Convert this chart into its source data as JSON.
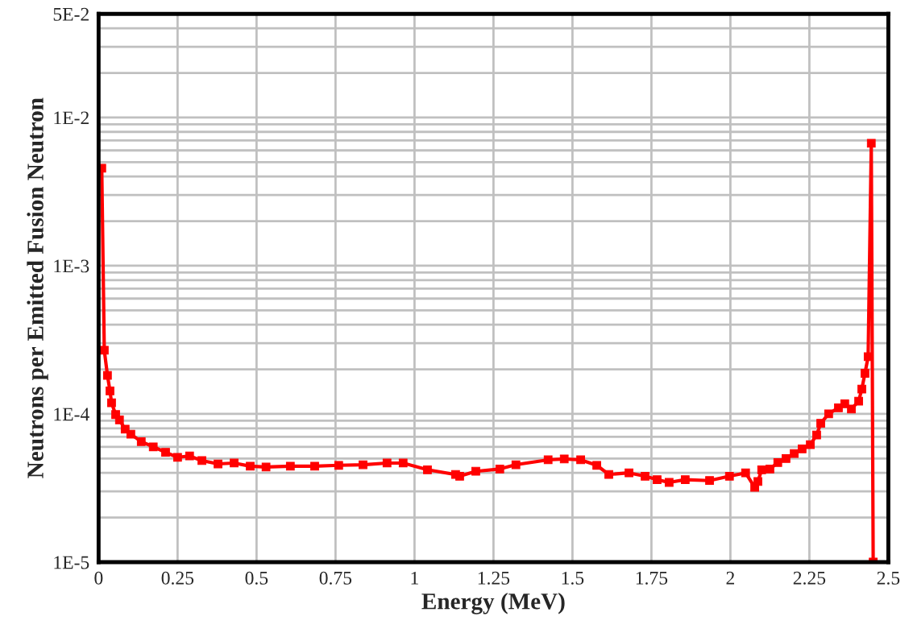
{
  "chart_data": {
    "type": "line",
    "xlabel": "Energy (MeV)",
    "ylabel": "Neutrons per Emitted Fusion Neutron",
    "log": "y",
    "grid": true,
    "marker": "square",
    "line_style": "solid",
    "xlim": [
      0,
      2.5
    ],
    "xticks": [
      0,
      0.25,
      0.5,
      0.75,
      1,
      1.25,
      1.5,
      1.75,
      2,
      2.25,
      2.5
    ],
    "ylim": [
      1e-05,
      0.05
    ],
    "yticks": [
      {
        "value": 1e-05,
        "label": "1E-5"
      },
      {
        "value": 2e-05,
        "label": null
      },
      {
        "value": 3e-05,
        "label": null
      },
      {
        "value": 4e-05,
        "label": null
      },
      {
        "value": 5e-05,
        "label": null
      },
      {
        "value": 6e-05,
        "label": null
      },
      {
        "value": 7e-05,
        "label": null
      },
      {
        "value": 8e-05,
        "label": null
      },
      {
        "value": 9e-05,
        "label": null
      },
      {
        "value": 0.0001,
        "label": "1E-4"
      },
      {
        "value": 0.0002,
        "label": null
      },
      {
        "value": 0.0003,
        "label": null
      },
      {
        "value": 0.0004,
        "label": null
      },
      {
        "value": 0.0005,
        "label": null
      },
      {
        "value": 0.0006,
        "label": null
      },
      {
        "value": 0.0007,
        "label": null
      },
      {
        "value": 0.0008,
        "label": null
      },
      {
        "value": 0.0009,
        "label": null
      },
      {
        "value": 0.001,
        "label": "1E-3"
      },
      {
        "value": 0.002,
        "label": null
      },
      {
        "value": 0.003,
        "label": null
      },
      {
        "value": 0.004,
        "label": null
      },
      {
        "value": 0.005,
        "label": null
      },
      {
        "value": 0.006,
        "label": null
      },
      {
        "value": 0.007,
        "label": null
      },
      {
        "value": 0.008,
        "label": null
      },
      {
        "value": 0.009,
        "label": null
      },
      {
        "value": 0.01,
        "label": "1E-2"
      },
      {
        "value": 0.02,
        "label": null
      },
      {
        "value": 0.03,
        "label": null
      },
      {
        "value": 0.04,
        "label": null
      },
      {
        "value": 0.05,
        "label": "5E-2"
      }
    ],
    "x": [
      0.01,
      0.018,
      0.028,
      0.036,
      0.041,
      0.054,
      0.066,
      0.084,
      0.102,
      0.135,
      0.173,
      0.212,
      0.25,
      0.288,
      0.327,
      0.378,
      0.429,
      0.48,
      0.53,
      0.607,
      0.684,
      0.76,
      0.837,
      0.913,
      0.964,
      1.041,
      1.13,
      1.143,
      1.194,
      1.27,
      1.321,
      1.423,
      1.474,
      1.526,
      1.577,
      1.615,
      1.679,
      1.73,
      1.768,
      1.806,
      1.857,
      1.934,
      1.997,
      2.048,
      2.077,
      2.087,
      2.099,
      2.125,
      2.15,
      2.176,
      2.202,
      2.227,
      2.253,
      2.273,
      2.286,
      2.311,
      2.342,
      2.362,
      2.383,
      2.406,
      2.416,
      2.426,
      2.436,
      2.446,
      2.452
    ],
    "series": [
      {
        "color": "#ff0000",
        "values": [
          0.00455,
          0.000269,
          0.000182,
          0.000143,
          0.000119,
          9.9e-05,
          9.1e-05,
          7.9e-05,
          7.3e-05,
          6.5e-05,
          6e-05,
          5.5e-05,
          5.1e-05,
          5.2e-05,
          4.84e-05,
          4.6e-05,
          4.66e-05,
          4.44e-05,
          4.38e-05,
          4.44e-05,
          4.44e-05,
          4.5e-05,
          4.54e-05,
          4.66e-05,
          4.66e-05,
          4.2e-05,
          3.9e-05,
          3.8e-05,
          4.1e-05,
          4.25e-05,
          4.54e-05,
          4.9e-05,
          4.97e-05,
          4.9e-05,
          4.5e-05,
          3.9e-05,
          4e-05,
          3.8e-05,
          3.6e-05,
          3.45e-05,
          3.6e-05,
          3.55e-05,
          3.8e-05,
          4e-05,
          3.2e-05,
          3.5e-05,
          4.2e-05,
          4.25e-05,
          4.7e-05,
          5e-05,
          5.4e-05,
          5.8e-05,
          6.2e-05,
          7.2e-05,
          8.65e-05,
          0.0001,
          0.00011,
          0.000117,
          0.000108,
          0.000122,
          0.000147,
          0.000188,
          0.000243,
          0.0067,
          1e-05
        ]
      }
    ]
  }
}
